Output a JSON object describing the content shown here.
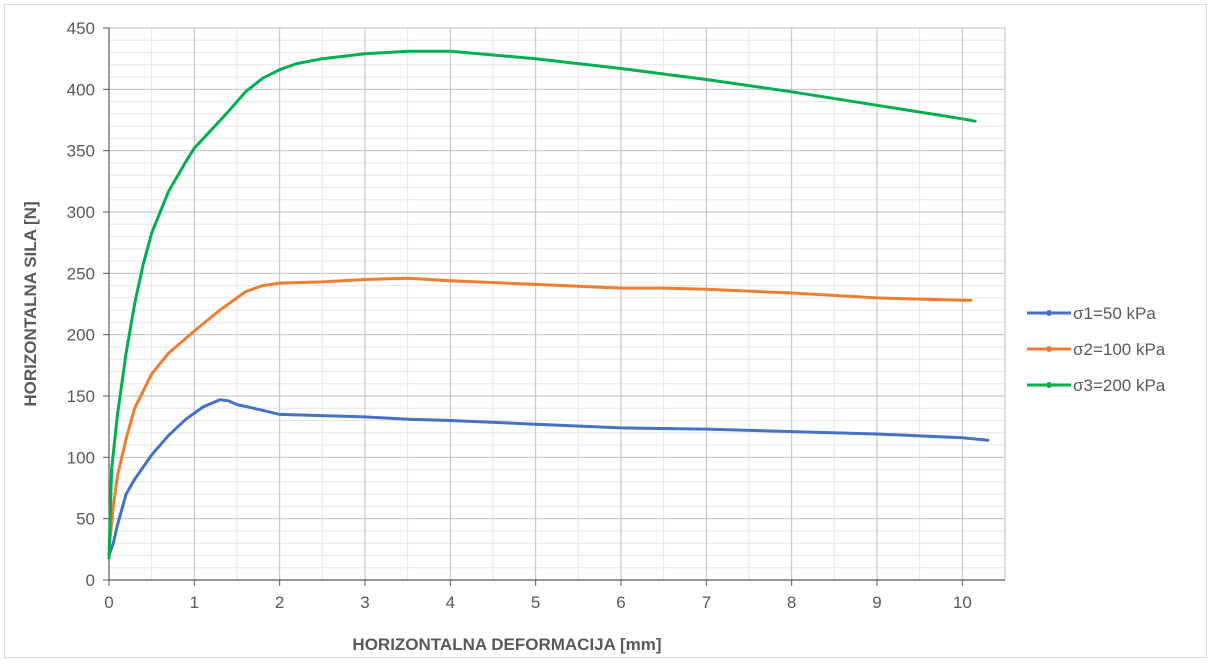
{
  "chart_data": {
    "type": "line",
    "title": "",
    "xlabel": "HORIZONTALNA DEFORMACIJA [mm]",
    "ylabel": "HORIZONTALNA SILA [N]",
    "xlim": [
      0,
      10.5
    ],
    "ylim": [
      0,
      450
    ],
    "xticks": [
      0,
      1,
      2,
      3,
      4,
      5,
      6,
      7,
      8,
      9,
      10
    ],
    "yticks": [
      0,
      50,
      100,
      150,
      200,
      250,
      300,
      350,
      400,
      450
    ],
    "grid": true,
    "legend_position": "right",
    "series": [
      {
        "name": "σ1=50 kPa",
        "color": "#4472c4",
        "x": [
          0,
          0.05,
          0.1,
          0.2,
          0.3,
          0.5,
          0.7,
          0.9,
          1.1,
          1.3,
          1.4,
          1.5,
          1.7,
          2.0,
          2.5,
          3.0,
          3.5,
          4.0,
          5.0,
          6.0,
          7.0,
          8.0,
          9.0,
          10.0,
          10.3
        ],
        "y": [
          20,
          30,
          45,
          70,
          82,
          102,
          118,
          131,
          141,
          147,
          146,
          143,
          140,
          135,
          134,
          133,
          131,
          130,
          127,
          124,
          123,
          121,
          119,
          116,
          114
        ]
      },
      {
        "name": "σ2=100 kPa",
        "color": "#ed7d31",
        "x": [
          0,
          0.05,
          0.1,
          0.2,
          0.3,
          0.5,
          0.7,
          1.0,
          1.3,
          1.6,
          1.8,
          2.0,
          2.5,
          3.0,
          3.5,
          4.0,
          5.0,
          6.0,
          6.5,
          7.0,
          8.0,
          9.0,
          9.5,
          10.0,
          10.1
        ],
        "y": [
          25,
          60,
          85,
          115,
          140,
          168,
          185,
          203,
          220,
          235,
          240,
          242,
          243,
          245,
          246,
          244,
          241,
          238,
          238,
          237,
          234,
          230,
          229,
          228,
          228
        ]
      },
      {
        "name": "σ3=200 kPa",
        "color": "#00b050",
        "x": [
          0,
          0.03,
          0.1,
          0.2,
          0.3,
          0.4,
          0.5,
          0.7,
          0.9,
          1.0,
          1.2,
          1.4,
          1.6,
          1.8,
          2.0,
          2.2,
          2.5,
          3.0,
          3.5,
          4.0,
          5.0,
          6.0,
          7.0,
          8.0,
          9.0,
          10.0,
          10.15
        ],
        "y": [
          18,
          90,
          135,
          185,
          225,
          257,
          283,
          317,
          341,
          352,
          367,
          382,
          398,
          409,
          416,
          421,
          425,
          429,
          431,
          431,
          425,
          417,
          408,
          398,
          387,
          376,
          374
        ]
      }
    ]
  }
}
